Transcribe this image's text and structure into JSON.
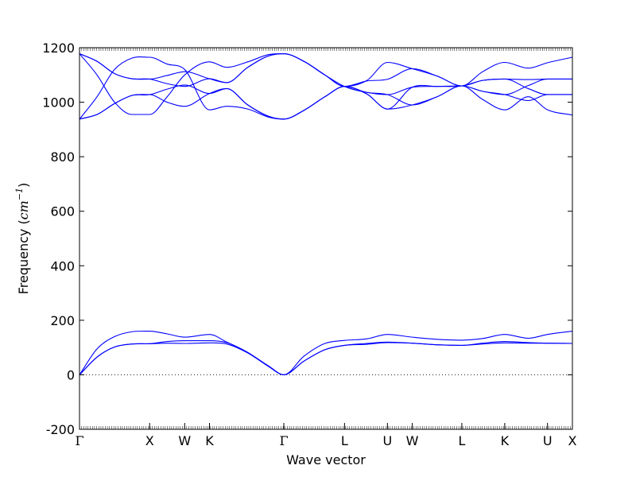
{
  "chart_data": {
    "type": "line",
    "xlabel": "Wave vector",
    "ylabel": "Frequency",
    "ylabel_unit": "cm",
    "ylabel_unit_exp": "−1",
    "ylim": [
      -200,
      1200
    ],
    "yticks": [
      -200,
      0,
      200,
      400,
      600,
      800,
      1000,
      1200
    ],
    "zero_line": true,
    "line_color": "#0000ff",
    "x_ticks": [
      {
        "label": "Γ",
        "pos": 0.0
      },
      {
        "label": "X",
        "pos": 1.0
      },
      {
        "label": "W",
        "pos": 1.5
      },
      {
        "label": "K",
        "pos": 1.854
      },
      {
        "label": "Γ",
        "pos": 2.914
      },
      {
        "label": "L",
        "pos": 3.78
      },
      {
        "label": "U",
        "pos": 4.392
      },
      {
        "label": "W",
        "pos": 4.746
      },
      {
        "label": "L",
        "pos": 5.453
      },
      {
        "label": "K",
        "pos": 6.065
      },
      {
        "label": "U",
        "pos": 6.675
      },
      {
        "label": "X",
        "pos": 7.03
      }
    ],
    "series": [
      {
        "values": [
          [
            0,
            0
          ],
          [
            0.25,
            65
          ],
          [
            0.5,
            102
          ],
          [
            0.75,
            113
          ],
          [
            1.0,
            114
          ],
          [
            1.25,
            116
          ],
          [
            1.5,
            115
          ],
          [
            1.854,
            117
          ],
          [
            2.1,
            113
          ],
          [
            2.4,
            80
          ],
          [
            2.7,
            30
          ],
          [
            2.914,
            0
          ],
          [
            3.2,
            50
          ],
          [
            3.5,
            92
          ],
          [
            3.78,
            108
          ],
          [
            4.1,
            112
          ],
          [
            4.392,
            118
          ],
          [
            4.746,
            116
          ],
          [
            5.1,
            110
          ],
          [
            5.453,
            108
          ],
          [
            5.75,
            113
          ],
          [
            6.065,
            117
          ],
          [
            6.4,
            116
          ],
          [
            6.675,
            116
          ],
          [
            7.03,
            115
          ]
        ]
      },
      {
        "values": [
          [
            0,
            0
          ],
          [
            0.25,
            65
          ],
          [
            0.5,
            102
          ],
          [
            0.75,
            113
          ],
          [
            1.0,
            114
          ],
          [
            1.25,
            122
          ],
          [
            1.5,
            125
          ],
          [
            1.854,
            125
          ],
          [
            2.1,
            118
          ],
          [
            2.4,
            82
          ],
          [
            2.7,
            30
          ],
          [
            2.914,
            0
          ],
          [
            3.2,
            50
          ],
          [
            3.5,
            92
          ],
          [
            3.78,
            108
          ],
          [
            4.1,
            115
          ],
          [
            4.392,
            120
          ],
          [
            4.746,
            116
          ],
          [
            5.1,
            110
          ],
          [
            5.453,
            108
          ],
          [
            5.75,
            116
          ],
          [
            6.065,
            122
          ],
          [
            6.4,
            118
          ],
          [
            6.675,
            116
          ],
          [
            7.03,
            115
          ]
        ]
      },
      {
        "values": [
          [
            0,
            0
          ],
          [
            0.25,
            95
          ],
          [
            0.5,
            140
          ],
          [
            0.75,
            158
          ],
          [
            1.0,
            160
          ],
          [
            1.25,
            150
          ],
          [
            1.5,
            138
          ],
          [
            1.854,
            148
          ],
          [
            2.1,
            120
          ],
          [
            2.4,
            82
          ],
          [
            2.7,
            32
          ],
          [
            2.914,
            0
          ],
          [
            3.2,
            68
          ],
          [
            3.5,
            115
          ],
          [
            3.78,
            126
          ],
          [
            4.1,
            132
          ],
          [
            4.392,
            148
          ],
          [
            4.746,
            138
          ],
          [
            5.1,
            130
          ],
          [
            5.453,
            127
          ],
          [
            5.75,
            133
          ],
          [
            6.065,
            148
          ],
          [
            6.4,
            134
          ],
          [
            6.675,
            148
          ],
          [
            7.03,
            160
          ]
        ]
      },
      {
        "values": [
          [
            0,
            1178
          ],
          [
            0.25,
            1150
          ],
          [
            0.5,
            1105
          ],
          [
            0.75,
            1086
          ],
          [
            1.0,
            1085
          ],
          [
            1.25,
            1068
          ],
          [
            1.5,
            1058
          ],
          [
            1.854,
            1086
          ],
          [
            2.1,
            1072
          ],
          [
            2.4,
            1128
          ],
          [
            2.7,
            1170
          ],
          [
            2.914,
            1178
          ],
          [
            3.2,
            1150
          ],
          [
            3.5,
            1100
          ],
          [
            3.78,
            1058
          ],
          [
            4.1,
            1036
          ],
          [
            4.392,
            1028
          ],
          [
            4.746,
            1055
          ],
          [
            5.1,
            1058
          ],
          [
            5.453,
            1060
          ],
          [
            5.75,
            1080
          ],
          [
            6.065,
            1085
          ],
          [
            6.4,
            1083
          ],
          [
            6.675,
            1085
          ],
          [
            7.03,
            1085
          ]
        ]
      },
      {
        "values": [
          [
            0,
            1178
          ],
          [
            0.25,
            1150
          ],
          [
            0.5,
            1105
          ],
          [
            0.75,
            1086
          ],
          [
            1.0,
            1085
          ],
          [
            1.25,
            1098
          ],
          [
            1.5,
            1112
          ],
          [
            1.854,
            1086
          ],
          [
            2.1,
            1072
          ],
          [
            2.4,
            1128
          ],
          [
            2.7,
            1170
          ],
          [
            2.914,
            1178
          ],
          [
            3.2,
            1150
          ],
          [
            3.5,
            1100
          ],
          [
            3.78,
            1058
          ],
          [
            4.1,
            1078
          ],
          [
            4.392,
            1084
          ],
          [
            4.746,
            1123
          ],
          [
            5.1,
            1096
          ],
          [
            5.453,
            1060
          ],
          [
            5.75,
            1080
          ],
          [
            6.065,
            1085
          ],
          [
            6.4,
            1050
          ],
          [
            6.675,
            1028
          ],
          [
            7.03,
            1028
          ]
        ]
      },
      {
        "values": [
          [
            0,
            1178
          ],
          [
            0.25,
            1100
          ],
          [
            0.5,
            1000
          ],
          [
            0.75,
            955
          ],
          [
            1.0,
            955
          ],
          [
            1.25,
            1020
          ],
          [
            1.5,
            1100
          ],
          [
            1.854,
            1148
          ],
          [
            2.1,
            1128
          ],
          [
            2.4,
            1148
          ],
          [
            2.7,
            1175
          ],
          [
            2.914,
            1178
          ],
          [
            3.2,
            1150
          ],
          [
            3.5,
            1100
          ],
          [
            3.78,
            1058
          ],
          [
            4.1,
            1080
          ],
          [
            4.392,
            1146
          ],
          [
            4.746,
            1123
          ],
          [
            5.1,
            1096
          ],
          [
            5.453,
            1060
          ],
          [
            5.75,
            1112
          ],
          [
            6.065,
            1146
          ],
          [
            6.4,
            1125
          ],
          [
            6.675,
            1145
          ],
          [
            7.03,
            1165
          ]
        ]
      },
      {
        "values": [
          [
            0,
            938
          ],
          [
            0.25,
            955
          ],
          [
            0.5,
            995
          ],
          [
            0.75,
            1025
          ],
          [
            1.0,
            1028
          ],
          [
            1.25,
            1048
          ],
          [
            1.5,
            1063
          ],
          [
            1.854,
            1032
          ],
          [
            2.1,
            1050
          ],
          [
            2.4,
            990
          ],
          [
            2.7,
            948
          ],
          [
            2.914,
            938
          ],
          [
            3.2,
            970
          ],
          [
            3.5,
            1020
          ],
          [
            3.78,
            1058
          ],
          [
            4.1,
            1036
          ],
          [
            4.392,
            1028
          ],
          [
            4.746,
            990
          ],
          [
            5.1,
            1020
          ],
          [
            5.453,
            1060
          ],
          [
            5.75,
            1040
          ],
          [
            6.065,
            1028
          ],
          [
            6.4,
            1061
          ],
          [
            6.675,
            1085
          ],
          [
            7.03,
            1085
          ]
        ]
      },
      {
        "values": [
          [
            0,
            938
          ],
          [
            0.25,
            955
          ],
          [
            0.5,
            995
          ],
          [
            0.75,
            1025
          ],
          [
            1.0,
            1028
          ],
          [
            1.25,
            1000
          ],
          [
            1.5,
            985
          ],
          [
            1.854,
            1032
          ],
          [
            2.1,
            1050
          ],
          [
            2.4,
            990
          ],
          [
            2.7,
            948
          ],
          [
            2.914,
            938
          ],
          [
            3.2,
            970
          ],
          [
            3.5,
            1020
          ],
          [
            3.78,
            1058
          ],
          [
            4.1,
            1030
          ],
          [
            4.392,
            975
          ],
          [
            4.746,
            990
          ],
          [
            5.1,
            1020
          ],
          [
            5.453,
            1060
          ],
          [
            5.75,
            1040
          ],
          [
            6.065,
            1028
          ],
          [
            6.4,
            1006
          ],
          [
            6.675,
            1028
          ],
          [
            7.03,
            1028
          ]
        ]
      },
      {
        "values": [
          [
            0,
            938
          ],
          [
            0.25,
            1020
          ],
          [
            0.5,
            1120
          ],
          [
            0.75,
            1162
          ],
          [
            1.0,
            1165
          ],
          [
            1.25,
            1140
          ],
          [
            1.5,
            1120
          ],
          [
            1.854,
            972
          ],
          [
            2.1,
            985
          ],
          [
            2.4,
            975
          ],
          [
            2.7,
            945
          ],
          [
            2.914,
            938
          ],
          [
            3.2,
            970
          ],
          [
            3.5,
            1020
          ],
          [
            3.78,
            1058
          ],
          [
            4.1,
            1030
          ],
          [
            4.392,
            975
          ],
          [
            4.746,
            1055
          ],
          [
            5.1,
            1058
          ],
          [
            5.453,
            1060
          ],
          [
            5.75,
            1010
          ],
          [
            6.065,
            972
          ],
          [
            6.4,
            1020
          ],
          [
            6.675,
            972
          ],
          [
            7.03,
            953
          ]
        ]
      }
    ]
  }
}
